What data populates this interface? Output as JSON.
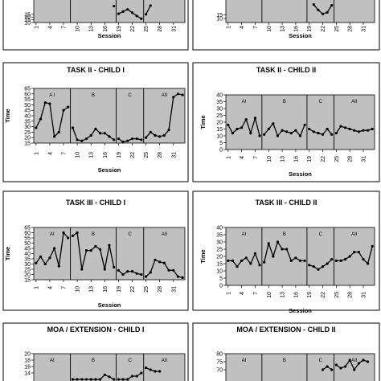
{
  "colors": {
    "plot_bg": "#c0c0c0",
    "line": "#000000",
    "panel_border": "#000000"
  },
  "chart_data": [
    {
      "id": "task1-child1",
      "type": "line",
      "title": "",
      "xlabel": "Session",
      "ylabel": "",
      "xticks": [
        "1",
        "4",
        "7",
        "10",
        "13",
        "16",
        "19",
        "22",
        "25",
        "28",
        "31"
      ],
      "yticks": [
        "10",
        "15",
        "20",
        "25"
      ],
      "ylim": [
        10,
        60
      ],
      "phase_labels": [
        "",
        "",
        "",
        ""
      ],
      "phase_boundaries": [
        8.5,
        18.5,
        24.5
      ],
      "x": [
        18,
        19,
        20,
        21,
        22,
        23,
        24,
        25,
        26
      ],
      "values": [
        40,
        26,
        30,
        34,
        28,
        22,
        17,
        25,
        41
      ]
    },
    {
      "id": "task1-child2",
      "type": "line",
      "title": "",
      "xlabel": "Session",
      "ylabel": "",
      "xticks": [
        "1",
        "4",
        "7",
        "10",
        "13",
        "16",
        "19",
        "22",
        "25",
        "28",
        "31"
      ],
      "yticks": [
        "15",
        "10"
      ],
      "ylim": [
        5,
        40
      ],
      "phase_labels": [
        "",
        "",
        "",
        ""
      ],
      "phase_boundaries": [
        8.5,
        18.5,
        24.5
      ],
      "x": [
        20,
        21,
        22,
        23,
        24
      ],
      "values": [
        28,
        21,
        16,
        18,
        27
      ]
    },
    {
      "id": "task2-child1",
      "type": "line",
      "title": "TASK II - CHILD I",
      "xlabel": "Session",
      "ylabel": "Time",
      "xticks": [
        "1",
        "4",
        "7",
        "10",
        "13",
        "16",
        "19",
        "22",
        "25",
        "28",
        "31"
      ],
      "yticks": [
        "15",
        "20",
        "25",
        "30",
        "35",
        "40",
        "45",
        "50",
        "55",
        "60",
        "65"
      ],
      "ylim": [
        15,
        65
      ],
      "phase_labels": [
        "A I",
        "B",
        "C",
        "AII"
      ],
      "phase_boundaries": [
        8.5,
        18.5,
        24.5
      ],
      "x": [
        1,
        2,
        3,
        4,
        5,
        6,
        7,
        8,
        9,
        10,
        11,
        12,
        13,
        14,
        15,
        16,
        17,
        18,
        19,
        20,
        21,
        22,
        23,
        24,
        25,
        26,
        27,
        28,
        29,
        30,
        31,
        32,
        33
      ],
      "values": [
        29,
        37,
        52,
        51,
        21,
        25,
        45,
        48,
        29,
        18,
        17,
        19,
        22,
        28,
        24,
        24,
        21,
        18,
        19,
        16,
        17,
        19,
        19,
        18,
        20,
        25,
        22,
        21,
        22,
        27,
        57,
        60,
        59
      ]
    },
    {
      "id": "task2-child2",
      "type": "line",
      "title": "TASK II - CHILD II",
      "xlabel": "Session",
      "ylabel": "Time",
      "xticks": [
        "1",
        "4",
        "7",
        "10",
        "13",
        "16",
        "19",
        "22",
        "25",
        "28",
        "31"
      ],
      "yticks": [
        "0",
        "5",
        "10",
        "15",
        "20",
        "25",
        "30",
        "35",
        "40"
      ],
      "ylim": [
        0,
        40
      ],
      "phase_labels": [
        "AI",
        "B",
        "C",
        "AII"
      ],
      "phase_boundaries": [
        8.5,
        18.5,
        24.5
      ],
      "x": [
        1,
        2,
        3,
        4,
        5,
        6,
        7,
        8,
        9,
        10,
        11,
        12,
        13,
        14,
        15,
        16,
        17,
        18,
        19,
        20,
        21,
        22,
        23,
        24,
        25,
        26,
        27,
        28,
        29,
        30,
        31,
        32,
        33
      ],
      "values": [
        18,
        12,
        15,
        16,
        22,
        12,
        23,
        10,
        11,
        15,
        19,
        10,
        14,
        13,
        12,
        14,
        10,
        18,
        15,
        13,
        12,
        11,
        15,
        11,
        12,
        17,
        16,
        15,
        14,
        13,
        14,
        14,
        15
      ]
    },
    {
      "id": "task3-child1",
      "type": "line",
      "title": "TASK III - CHILD I",
      "xlabel": "Session",
      "ylabel": "Time",
      "xticks": [
        "1",
        "4",
        "7",
        "10",
        "13",
        "16",
        "19",
        "22",
        "25",
        "28",
        "31"
      ],
      "yticks": [
        "15",
        "20",
        "25",
        "30",
        "35",
        "40",
        "45",
        "50",
        "55",
        "60",
        "65"
      ],
      "ylim": [
        15,
        65
      ],
      "phase_labels": [
        "AI",
        "B",
        "C",
        "AII"
      ],
      "phase_boundaries": [
        8.5,
        18.5,
        24.5
      ],
      "x": [
        1,
        2,
        3,
        4,
        5,
        6,
        7,
        8,
        9,
        10,
        11,
        12,
        13,
        14,
        15,
        16,
        17,
        18,
        19,
        20,
        21,
        22,
        23,
        24,
        25,
        26,
        27,
        28,
        29,
        30,
        31,
        32,
        33
      ],
      "values": [
        31,
        37,
        30,
        36,
        45,
        28,
        60,
        55,
        57,
        60,
        25,
        43,
        43,
        47,
        44,
        25,
        48,
        27,
        24,
        20,
        23,
        23,
        21,
        20,
        18,
        22,
        34,
        32,
        31,
        24,
        24,
        18,
        17
      ]
    },
    {
      "id": "task3-child2",
      "type": "line",
      "title": "TASK III - CHILD II",
      "xlabel": "Session",
      "ylabel": "Time",
      "xticks": [
        "1",
        "4",
        "7",
        "10",
        "13",
        "16",
        "19",
        "22",
        "25",
        "28",
        "31"
      ],
      "yticks": [
        "0",
        "5",
        "10",
        "15",
        "20",
        "25",
        "30",
        "35",
        "40"
      ],
      "ylim": [
        0,
        40
      ],
      "phase_labels": [
        "AI",
        "B",
        "C",
        "AII"
      ],
      "phase_boundaries": [
        8.5,
        18.5,
        24.5
      ],
      "x": [
        1,
        2,
        3,
        4,
        5,
        6,
        7,
        8,
        9,
        10,
        11,
        12,
        13,
        14,
        15,
        16,
        17,
        18,
        19,
        20,
        21,
        22,
        23,
        24,
        25,
        26,
        27,
        28,
        29,
        30,
        31,
        32,
        33
      ],
      "values": [
        17,
        17,
        13,
        17,
        19,
        15,
        22,
        14,
        16,
        29,
        20,
        30,
        25,
        25,
        17,
        19,
        17,
        17,
        14,
        13,
        11,
        13,
        15,
        18,
        17,
        17,
        18,
        20,
        23,
        23,
        18,
        15,
        27
      ]
    },
    {
      "id": "moa-child1",
      "type": "line",
      "title": "MOA / EXTENSION - CHILD I",
      "xlabel": "",
      "ylabel": "",
      "xticks": [],
      "yticks": [
        "20",
        "18",
        "16",
        "14"
      ],
      "ylim": [
        10,
        20
      ],
      "phase_labels": [
        "AI",
        "B",
        "C",
        "AII"
      ],
      "phase_boundaries": [
        8.5,
        18.5,
        24.5
      ],
      "x": [
        9,
        10,
        11,
        12,
        13,
        14,
        15,
        16,
        17,
        18,
        19,
        20,
        21,
        22,
        23,
        24,
        25,
        26,
        27,
        28
      ],
      "values": [
        12,
        12,
        12,
        12,
        12,
        12,
        12,
        13.4,
        12.8,
        12,
        12,
        12,
        12,
        13,
        13,
        14,
        15.6,
        15,
        14.5,
        14.5
      ]
    },
    {
      "id": "moa-child2",
      "type": "line",
      "title": "MOA / EXTENSION - CHILD II",
      "xlabel": "",
      "ylabel": "",
      "xticks": [],
      "yticks": [
        "80",
        "75",
        "70"
      ],
      "ylim": [
        60,
        80
      ],
      "phase_labels": [
        "AI",
        "B",
        "C",
        "AII"
      ],
      "phase_boundaries": [
        8.5,
        18.5,
        24.5
      ],
      "x": [
        22,
        23,
        24,
        25,
        26,
        27,
        28,
        29,
        30,
        31,
        32
      ],
      "values": [
        70,
        72,
        70,
        73,
        71,
        72,
        76,
        70,
        74,
        76,
        75
      ]
    }
  ]
}
